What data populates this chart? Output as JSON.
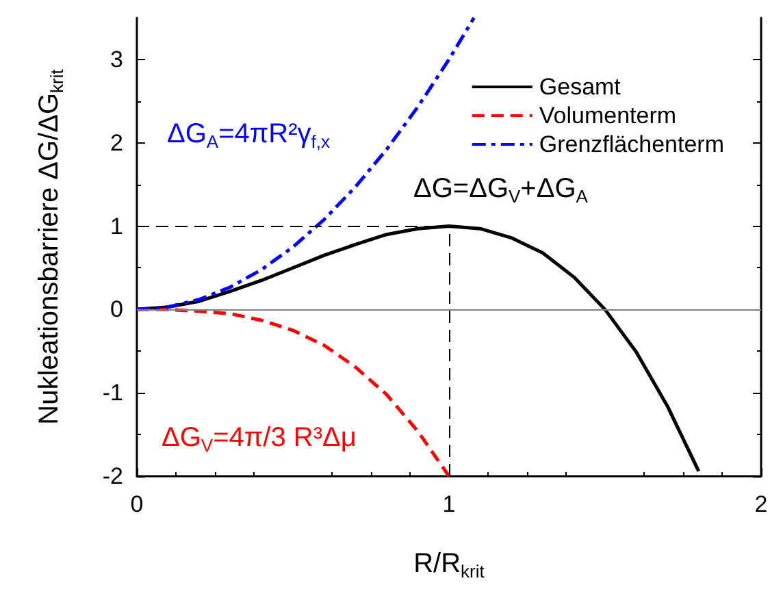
{
  "chart_data": {
    "type": "line",
    "xlabel": "R/R$_{krit}$",
    "ylabel": "Nukleationsbarriere ΔG/ΔG$_{krit}$",
    "xlim": [
      0,
      2
    ],
    "xticks": [
      0,
      1,
      2
    ],
    "ylim": [
      -2,
      3.5
    ],
    "yticks": [
      -2,
      -1,
      0,
      1,
      2,
      3
    ],
    "legend": "top right",
    "marker": "none",
    "series": [
      {
        "name": "Gesamt",
        "color": "#000000",
        "line_style": "solid",
        "x": [
          0,
          0.1,
          0.2,
          0.3,
          0.4,
          0.5,
          0.6,
          0.7,
          0.8,
          0.9,
          1,
          1.1,
          1.2,
          1.3,
          1.4,
          1.5,
          1.6,
          1.7,
          1.8
        ],
        "values": [
          0,
          0.03,
          0.1,
          0.22,
          0.35,
          0.5,
          0.65,
          0.78,
          0.9,
          0.97,
          1,
          0.97,
          0.86,
          0.68,
          0.39,
          0,
          -0.51,
          -1.16,
          -1.94
        ]
      },
      {
        "name": "Volumenterm",
        "color": "#ff0000",
        "line_style": "dashed",
        "x": [
          0,
          0.1,
          0.2,
          0.3,
          0.4,
          0.5,
          0.6,
          0.7,
          0.8,
          0.9,
          1
        ],
        "values": [
          0,
          0,
          -0.02,
          -0.05,
          -0.13,
          -0.25,
          -0.43,
          -0.69,
          -1.02,
          -1.46,
          -2
        ]
      },
      {
        "name": "Grenzflächenterm",
        "color": "#0000ff",
        "line_style": "dashdot",
        "x": [
          0,
          0.1,
          0.2,
          0.3,
          0.4,
          0.5,
          0.6,
          0.7,
          0.8,
          0.9,
          1,
          1.08
        ],
        "values": [
          0,
          0.03,
          0.12,
          0.27,
          0.48,
          0.75,
          1.08,
          1.47,
          1.92,
          2.43,
          3,
          3.5
        ]
      }
    ],
    "ref_lines": [
      {
        "axis": "y",
        "value": 1,
        "color": "#000000",
        "line_style": "dashed"
      },
      {
        "axis": "x",
        "value": 1,
        "color": "#000000",
        "line_style": "dashed"
      },
      {
        "axis": "y",
        "value": 0,
        "color": "#808080",
        "line_style": "solid"
      }
    ],
    "annotations": [
      "ΔG=ΔG$_{V}$+ΔG$_{A}$",
      "ΔG$_{V}$=4π/3 R³Δμ",
      "ΔG$_{A}$=4πR²γ$_{f,x}$"
    ]
  }
}
